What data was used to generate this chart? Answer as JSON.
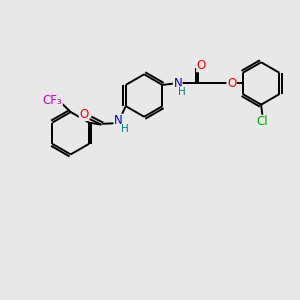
{
  "bg_color": "#e8e8e8",
  "bond_color": "#000000",
  "atom_colors": {
    "O": "#ff0000",
    "N": "#0000cc",
    "F": "#cc00cc",
    "Cl": "#00aa00",
    "H": "#008080",
    "C": "#000000"
  },
  "line_width": 1.4,
  "figsize": [
    3.0,
    3.0
  ],
  "dpi": 100,
  "xlim": [
    0,
    10
  ],
  "ylim": [
    0,
    10
  ]
}
